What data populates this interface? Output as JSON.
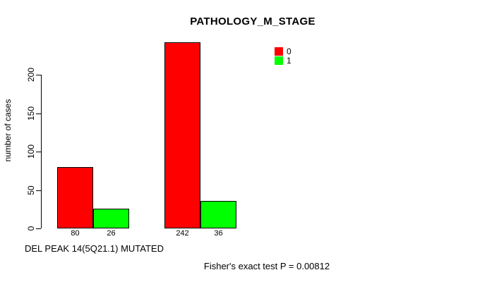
{
  "chart_data": {
    "type": "bar",
    "title": "PATHOLOGY_M_STAGE",
    "ylabel": "number of cases",
    "xlabel": "DEL PEAK 14(5Q21.1) MUTATED",
    "annotation": "Fisher's exact test P = 0.00812",
    "yticks": [
      0,
      50,
      100,
      150,
      200
    ],
    "ylim": [
      0,
      245
    ],
    "grid": false,
    "legend_position": "top-right",
    "series": [
      {
        "name": "0",
        "color": "#ff0000",
        "values": [
          80,
          242
        ]
      },
      {
        "name": "1",
        "color": "#00ff00",
        "values": [
          26,
          36
        ]
      }
    ],
    "bar_labels": [
      [
        "80",
        "26"
      ],
      [
        "242",
        "36"
      ]
    ],
    "legend": [
      {
        "label": "0",
        "color": "#ff0000"
      },
      {
        "label": "1",
        "color": "#00ff00"
      }
    ]
  }
}
